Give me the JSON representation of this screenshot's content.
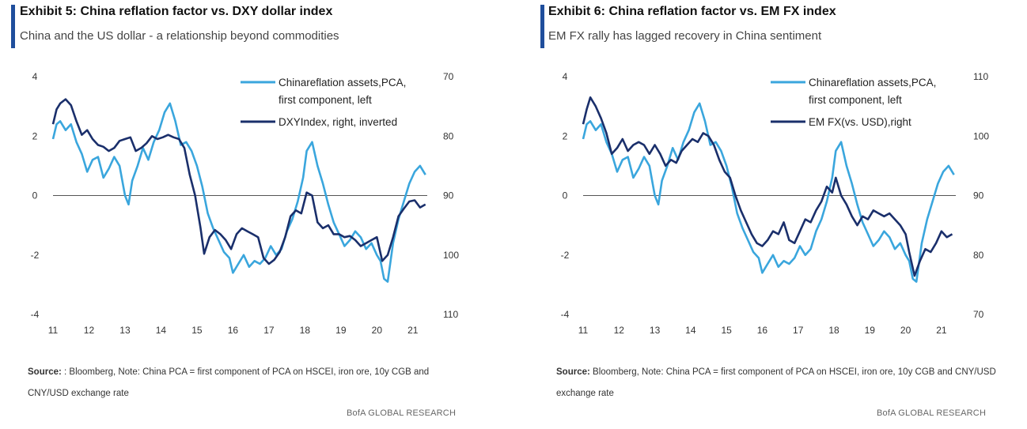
{
  "charts": [
    {
      "title": "Exhibit 5: China reflation factor vs. DXY dollar index",
      "subtitle": "China and the US dollar - a relationship beyond commodities",
      "source_label": "Source:",
      "source_text": " : Bloomberg, Note: China PCA = first component of PCA on HSCEI, iron ore, 10y CGB and CNY/USD exchange rate",
      "brand": "BofA GLOBAL RESEARCH",
      "legend": [
        "Chinareflation  assets,PCA,",
        "first  component,  left",
        "DXYIndex, right,  inverted"
      ],
      "colors": {
        "pca": "#3aa6dd",
        "second": "#1a2f6b",
        "zero": "#555555"
      }
    },
    {
      "title": "Exhibit 6: China reflation factor vs. EM FX index",
      "subtitle": "EM FX rally has lagged recovery in China sentiment",
      "source_label": "Source:",
      "source_text": " Bloomberg, Note: China PCA = first component of PCA on HSCEI, iron ore, 10y CGB and CNY/USD exchange rate",
      "brand": "BofA GLOBAL RESEARCH",
      "legend": [
        "Chinareflation  assets,PCA,",
        "first  component,  left",
        "EM FX(vs. USD),right"
      ],
      "colors": {
        "pca": "#3aa6dd",
        "second": "#1a2f6b",
        "zero": "#555555"
      }
    }
  ],
  "chart_data": [
    {
      "type": "line",
      "x_ticks": [
        "11",
        "12",
        "13",
        "14",
        "15",
        "16",
        "17",
        "18",
        "19",
        "20",
        "21"
      ],
      "xlim": [
        2011.0,
        2021.4
      ],
      "y_left_ticks": [
        "4",
        "2",
        "0",
        "-2",
        "-4"
      ],
      "y_left_lim": [
        -4,
        4
      ],
      "y_right_ticks": [
        "70",
        "80",
        "90",
        "100",
        "110"
      ],
      "y_right_lim": [
        70,
        110
      ],
      "y_right_inverted": true,
      "series": [
        {
          "name": "Chinareflation assets,PCA, first component, left",
          "axis": "left",
          "x": [
            2011.0,
            2011.1,
            2011.2,
            2011.35,
            2011.5,
            2011.65,
            2011.8,
            2011.95,
            2012.1,
            2012.25,
            2012.4,
            2012.55,
            2012.7,
            2012.85,
            2013.0,
            2013.1,
            2013.2,
            2013.35,
            2013.5,
            2013.65,
            2013.8,
            2013.95,
            2014.1,
            2014.25,
            2014.4,
            2014.55,
            2014.7,
            2014.85,
            2015.0,
            2015.15,
            2015.3,
            2015.45,
            2015.6,
            2015.75,
            2015.9,
            2016.0,
            2016.15,
            2016.3,
            2016.45,
            2016.6,
            2016.75,
            2016.9,
            2017.05,
            2017.2,
            2017.35,
            2017.5,
            2017.65,
            2017.8,
            2017.95,
            2018.05,
            2018.2,
            2018.35,
            2018.5,
            2018.65,
            2018.8,
            2018.95,
            2019.1,
            2019.25,
            2019.4,
            2019.55,
            2019.7,
            2019.85,
            2020.0,
            2020.1,
            2020.2,
            2020.3,
            2020.45,
            2020.6,
            2020.75,
            2020.9,
            2021.05,
            2021.2,
            2021.35
          ],
          "values": [
            1.9,
            2.4,
            2.5,
            2.2,
            2.4,
            1.8,
            1.4,
            0.8,
            1.2,
            1.3,
            0.6,
            0.9,
            1.3,
            1.0,
            0.0,
            -0.3,
            0.5,
            1.0,
            1.6,
            1.2,
            1.8,
            2.2,
            2.8,
            3.1,
            2.5,
            1.7,
            1.8,
            1.5,
            1.0,
            0.3,
            -0.6,
            -1.1,
            -1.5,
            -1.9,
            -2.1,
            -2.6,
            -2.3,
            -2.0,
            -2.4,
            -2.2,
            -2.3,
            -2.1,
            -1.7,
            -2.0,
            -1.8,
            -1.2,
            -0.8,
            -0.2,
            0.6,
            1.5,
            1.8,
            1.0,
            0.4,
            -0.3,
            -0.9,
            -1.3,
            -1.7,
            -1.5,
            -1.2,
            -1.4,
            -1.8,
            -1.6,
            -2.0,
            -2.2,
            -2.8,
            -2.9,
            -1.6,
            -0.8,
            -0.2,
            0.4,
            0.8,
            1.0,
            0.7
          ]
        },
        {
          "name": "DXYIndex, right, inverted",
          "axis": "right",
          "x": [
            2011.0,
            2011.1,
            2011.2,
            2011.35,
            2011.5,
            2011.65,
            2011.8,
            2011.95,
            2012.1,
            2012.25,
            2012.4,
            2012.55,
            2012.7,
            2012.85,
            2013.0,
            2013.15,
            2013.3,
            2013.45,
            2013.6,
            2013.75,
            2013.9,
            2014.05,
            2014.2,
            2014.35,
            2014.5,
            2014.65,
            2014.8,
            2014.95,
            2015.1,
            2015.2,
            2015.35,
            2015.5,
            2015.65,
            2015.8,
            2015.95,
            2016.1,
            2016.25,
            2016.4,
            2016.55,
            2016.7,
            2016.85,
            2017.0,
            2017.15,
            2017.3,
            2017.45,
            2017.6,
            2017.75,
            2017.9,
            2018.05,
            2018.2,
            2018.35,
            2018.5,
            2018.65,
            2018.8,
            2018.95,
            2019.1,
            2019.25,
            2019.4,
            2019.55,
            2019.7,
            2019.85,
            2020.0,
            2020.15,
            2020.3,
            2020.45,
            2020.6,
            2020.75,
            2020.9,
            2021.05,
            2021.2,
            2021.35
          ],
          "values": [
            78.0,
            75.5,
            74.5,
            73.8,
            74.8,
            77.5,
            79.8,
            79.0,
            80.5,
            81.5,
            81.8,
            82.5,
            82.0,
            80.8,
            80.5,
            80.2,
            82.5,
            82.0,
            81.2,
            80.0,
            80.5,
            80.2,
            79.8,
            80.2,
            80.5,
            82.0,
            86.5,
            90.0,
            95.5,
            99.8,
            97.0,
            95.8,
            96.5,
            97.5,
            99.0,
            96.5,
            95.5,
            96.0,
            96.5,
            97.0,
            100.5,
            101.5,
            100.8,
            99.5,
            97.0,
            93.5,
            92.5,
            93.0,
            89.5,
            90.0,
            94.5,
            95.5,
            95.0,
            96.5,
            96.5,
            97.0,
            96.8,
            97.5,
            98.5,
            98.0,
            97.5,
            97.0,
            101.0,
            100.0,
            97.0,
            93.5,
            92.2,
            91.0,
            90.8,
            92.0,
            91.5
          ]
        }
      ]
    },
    {
      "type": "line",
      "x_ticks": [
        "11",
        "12",
        "13",
        "14",
        "15",
        "16",
        "17",
        "18",
        "19",
        "20",
        "21"
      ],
      "xlim": [
        2011.0,
        2021.4
      ],
      "y_left_ticks": [
        "4",
        "2",
        "0",
        "-2",
        "-4"
      ],
      "y_left_lim": [
        -4,
        4
      ],
      "y_right_ticks": [
        "110",
        "100",
        "90",
        "80",
        "70"
      ],
      "y_right_lim": [
        70,
        110
      ],
      "y_right_inverted": false,
      "series": [
        {
          "name": "Chinareflation assets,PCA, first component, left",
          "axis": "left",
          "x": [
            2011.0,
            2011.1,
            2011.2,
            2011.35,
            2011.5,
            2011.65,
            2011.8,
            2011.95,
            2012.1,
            2012.25,
            2012.4,
            2012.55,
            2012.7,
            2012.85,
            2013.0,
            2013.1,
            2013.2,
            2013.35,
            2013.5,
            2013.65,
            2013.8,
            2013.95,
            2014.1,
            2014.25,
            2014.4,
            2014.55,
            2014.7,
            2014.85,
            2015.0,
            2015.15,
            2015.3,
            2015.45,
            2015.6,
            2015.75,
            2015.9,
            2016.0,
            2016.15,
            2016.3,
            2016.45,
            2016.6,
            2016.75,
            2016.9,
            2017.05,
            2017.2,
            2017.35,
            2017.5,
            2017.65,
            2017.8,
            2017.95,
            2018.05,
            2018.2,
            2018.35,
            2018.5,
            2018.65,
            2018.8,
            2018.95,
            2019.1,
            2019.25,
            2019.4,
            2019.55,
            2019.7,
            2019.85,
            2020.0,
            2020.1,
            2020.2,
            2020.3,
            2020.45,
            2020.6,
            2020.75,
            2020.9,
            2021.05,
            2021.2,
            2021.35
          ],
          "values": [
            1.9,
            2.4,
            2.5,
            2.2,
            2.4,
            1.8,
            1.4,
            0.8,
            1.2,
            1.3,
            0.6,
            0.9,
            1.3,
            1.0,
            0.0,
            -0.3,
            0.5,
            1.0,
            1.6,
            1.2,
            1.8,
            2.2,
            2.8,
            3.1,
            2.5,
            1.7,
            1.8,
            1.5,
            1.0,
            0.3,
            -0.6,
            -1.1,
            -1.5,
            -1.9,
            -2.1,
            -2.6,
            -2.3,
            -2.0,
            -2.4,
            -2.2,
            -2.3,
            -2.1,
            -1.7,
            -2.0,
            -1.8,
            -1.2,
            -0.8,
            -0.2,
            0.6,
            1.5,
            1.8,
            1.0,
            0.4,
            -0.3,
            -0.9,
            -1.3,
            -1.7,
            -1.5,
            -1.2,
            -1.4,
            -1.8,
            -1.6,
            -2.0,
            -2.2,
            -2.8,
            -2.9,
            -1.6,
            -0.8,
            -0.2,
            0.4,
            0.8,
            1.0,
            0.7
          ]
        },
        {
          "name": "EM FX(vs. USD),right",
          "axis": "right",
          "x": [
            2011.0,
            2011.1,
            2011.2,
            2011.35,
            2011.5,
            2011.65,
            2011.8,
            2011.95,
            2012.1,
            2012.25,
            2012.4,
            2012.55,
            2012.7,
            2012.85,
            2013.0,
            2013.15,
            2013.3,
            2013.45,
            2013.6,
            2013.75,
            2013.9,
            2014.05,
            2014.2,
            2014.35,
            2014.5,
            2014.65,
            2014.8,
            2014.95,
            2015.1,
            2015.25,
            2015.4,
            2015.55,
            2015.7,
            2015.85,
            2016.0,
            2016.15,
            2016.3,
            2016.45,
            2016.6,
            2016.75,
            2016.9,
            2017.05,
            2017.2,
            2017.35,
            2017.5,
            2017.65,
            2017.8,
            2017.95,
            2018.05,
            2018.2,
            2018.35,
            2018.5,
            2018.65,
            2018.8,
            2018.95,
            2019.1,
            2019.25,
            2019.4,
            2019.55,
            2019.7,
            2019.85,
            2020.0,
            2020.1,
            2020.25,
            2020.4,
            2020.55,
            2020.7,
            2020.85,
            2021.0,
            2021.15,
            2021.3
          ],
          "values": [
            102.0,
            104.5,
            106.5,
            105.0,
            103.0,
            100.5,
            97.0,
            98.0,
            99.5,
            97.5,
            98.5,
            99.0,
            98.5,
            97.0,
            98.5,
            97.0,
            95.0,
            96.0,
            95.5,
            97.5,
            98.5,
            99.5,
            99.0,
            100.5,
            100.0,
            98.5,
            96.0,
            94.0,
            93.0,
            90.0,
            87.5,
            85.5,
            83.5,
            82.0,
            81.5,
            82.5,
            84.0,
            83.5,
            85.5,
            82.5,
            82.0,
            84.0,
            86.0,
            85.5,
            87.5,
            89.0,
            91.5,
            90.5,
            93.0,
            90.0,
            88.5,
            86.5,
            85.0,
            86.5,
            86.0,
            87.5,
            87.0,
            86.5,
            87.0,
            86.0,
            85.0,
            83.5,
            80.5,
            76.5,
            79.0,
            81.0,
            80.5,
            82.0,
            84.0,
            83.0,
            83.5
          ]
        }
      ]
    }
  ]
}
